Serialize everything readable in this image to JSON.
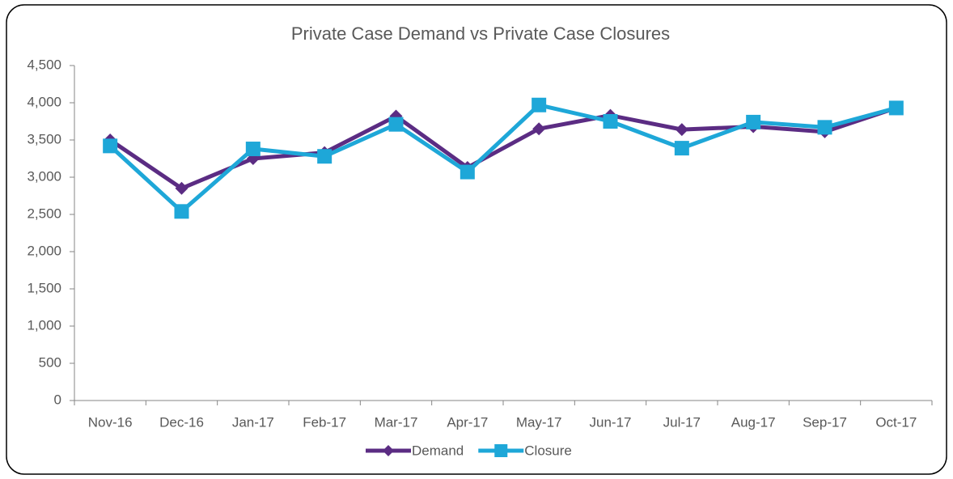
{
  "chart_data": {
    "type": "line",
    "title": "Private Case Demand vs Private Case Closures",
    "categories": [
      "Nov-16",
      "Dec-16",
      "Jan-17",
      "Feb-17",
      "Mar-17",
      "Apr-17",
      "May-17",
      "Jun-17",
      "Jul-17",
      "Aug-17",
      "Sep-17",
      "Oct-17"
    ],
    "series": [
      {
        "name": "Demand",
        "color": "#5b2c83",
        "marker": "diamond",
        "values": [
          3500,
          2850,
          3250,
          3330,
          3820,
          3130,
          3650,
          3830,
          3640,
          3680,
          3610,
          3930
        ]
      },
      {
        "name": "Closure",
        "color": "#1ea7d8",
        "marker": "square",
        "values": [
          3420,
          2540,
          3380,
          3280,
          3710,
          3070,
          3970,
          3750,
          3390,
          3740,
          3670,
          3930
        ]
      }
    ],
    "ylim": [
      0,
      4500
    ],
    "yticks": [
      0,
      500,
      {
        "value": 1000,
        "label": "1,000"
      },
      {
        "value": 1500,
        "label": "1,500"
      },
      {
        "value": 2000,
        "label": "2,000"
      },
      {
        "value": 2500,
        "label": "2,500"
      },
      {
        "value": 3000,
        "label": "3,000"
      },
      {
        "value": 3500,
        "label": "3,500"
      },
      {
        "value": 4000,
        "label": "4,000"
      },
      {
        "value": 4500,
        "label": "4,500"
      }
    ],
    "grid": false,
    "legend": "bottom"
  }
}
